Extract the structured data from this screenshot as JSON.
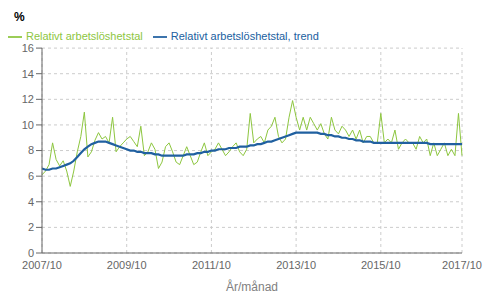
{
  "chart_data": {
    "type": "line",
    "xlabel": "År/månad",
    "ylabel": "%",
    "categories": [
      "2007/10",
      null,
      null,
      null,
      null,
      null,
      null,
      null,
      null,
      null,
      null,
      null,
      null,
      null,
      null,
      null,
      null,
      null,
      null,
      null,
      null,
      null,
      null,
      null,
      "2009/10",
      null,
      null,
      null,
      null,
      null,
      null,
      null,
      null,
      null,
      null,
      null,
      null,
      null,
      null,
      null,
      null,
      null,
      null,
      null,
      null,
      null,
      null,
      null,
      "2011/10",
      null,
      null,
      null,
      null,
      null,
      null,
      null,
      null,
      null,
      null,
      null,
      null,
      null,
      null,
      null,
      null,
      null,
      null,
      null,
      null,
      null,
      null,
      null,
      "2013/10",
      null,
      null,
      null,
      null,
      null,
      null,
      null,
      null,
      null,
      null,
      null,
      null,
      null,
      null,
      null,
      null,
      null,
      null,
      null,
      null,
      null,
      null,
      null,
      "2015/10",
      null,
      null,
      null,
      null,
      null,
      null,
      null,
      null,
      null,
      null,
      null,
      null,
      null,
      null,
      null,
      null,
      null,
      null,
      null,
      null,
      null,
      null,
      "2017/10"
    ],
    "series": [
      {
        "name": "Relativt arbetslöshetstal",
        "color": "#8dc63f",
        "values": [
          6.1,
          6.4,
          6.9,
          8.6,
          7.3,
          6.8,
          7.2,
          6.4,
          5.2,
          6.4,
          7.9,
          9.1,
          11.0,
          7.5,
          7.9,
          8.8,
          9.4,
          8.9,
          9.1,
          8.6,
          10.6,
          7.9,
          8.3,
          8.6,
          8.9,
          9.1,
          8.7,
          8.3,
          9.9,
          7.6,
          7.9,
          8.6,
          8.1,
          6.6,
          7.1,
          8.3,
          8.6,
          7.9,
          7.1,
          6.9,
          7.6,
          8.3,
          7.6,
          6.9,
          7.1,
          7.9,
          8.6,
          7.6,
          7.9,
          8.1,
          8.6,
          8.1,
          7.6,
          7.9,
          8.3,
          8.6,
          7.9,
          7.6,
          8.1,
          10.9,
          8.6,
          8.9,
          9.1,
          8.6,
          9.6,
          9.9,
          10.6,
          9.1,
          8.6,
          8.9,
          10.6,
          11.9,
          10.6,
          9.6,
          10.6,
          9.6,
          10.6,
          10.1,
          9.6,
          10.1,
          9.3,
          8.9,
          10.6,
          9.6,
          9.3,
          9.9,
          9.6,
          9.1,
          9.6,
          8.9,
          9.6,
          8.6,
          9.1,
          9.1,
          8.6,
          8.6,
          10.9,
          8.6,
          8.9,
          8.6,
          9.6,
          8.1,
          8.6,
          8.9,
          8.6,
          8.6,
          8.1,
          9.1,
          8.6,
          8.9,
          7.6,
          8.6,
          7.6,
          8.1,
          8.6,
          7.6,
          8.1,
          7.6,
          10.9,
          7.6
        ]
      },
      {
        "name": "Relativt arbetslöshetstal, trend",
        "color": "#2060a0",
        "values": [
          6.6,
          6.5,
          6.5,
          6.6,
          6.6,
          6.7,
          6.8,
          6.9,
          7.0,
          7.2,
          7.5,
          7.8,
          8.1,
          8.3,
          8.5,
          8.6,
          8.7,
          8.7,
          8.7,
          8.6,
          8.5,
          8.4,
          8.3,
          8.2,
          8.1,
          8.0,
          8.0,
          7.9,
          7.9,
          7.8,
          7.8,
          7.8,
          7.7,
          7.7,
          7.6,
          7.6,
          7.6,
          7.6,
          7.6,
          7.6,
          7.6,
          7.7,
          7.7,
          7.7,
          7.8,
          7.8,
          7.9,
          7.9,
          8.0,
          8.0,
          8.1,
          8.1,
          8.1,
          8.2,
          8.2,
          8.2,
          8.3,
          8.3,
          8.3,
          8.4,
          8.4,
          8.5,
          8.5,
          8.6,
          8.7,
          8.7,
          8.8,
          8.9,
          9.0,
          9.1,
          9.2,
          9.3,
          9.4,
          9.4,
          9.4,
          9.4,
          9.4,
          9.4,
          9.4,
          9.3,
          9.3,
          9.2,
          9.2,
          9.1,
          9.1,
          9.0,
          9.0,
          8.9,
          8.9,
          8.8,
          8.8,
          8.7,
          8.7,
          8.7,
          8.6,
          8.6,
          8.6,
          8.6,
          8.6,
          8.6,
          8.6,
          8.6,
          8.6,
          8.6,
          8.6,
          8.6,
          8.6,
          8.6,
          8.6,
          8.6,
          8.5,
          8.5,
          8.5,
          8.5,
          8.5,
          8.5,
          8.5,
          8.5,
          8.5,
          8.5
        ]
      }
    ],
    "ylim": [
      0,
      16
    ],
    "yticks": [
      0,
      2,
      4,
      6,
      8,
      10,
      12,
      14,
      16
    ],
    "grid": true,
    "legend": "upper left"
  }
}
